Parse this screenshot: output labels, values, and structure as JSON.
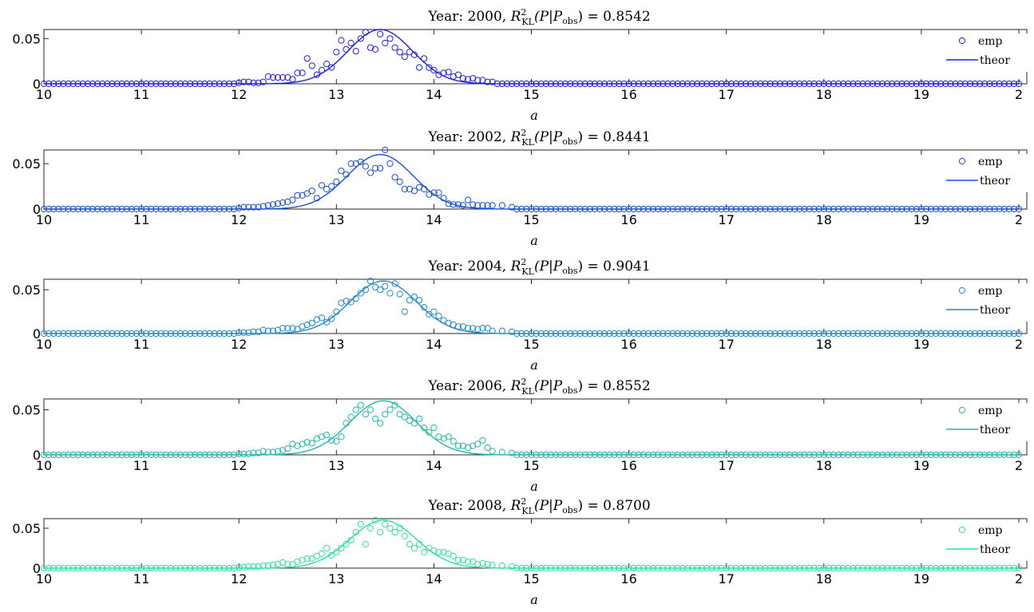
{
  "chart_data": [
    {
      "type": "scatter",
      "title": "Year: 2000, R²KL(P|Pobs) = 0.8542",
      "title_parts": {
        "prefix": "Year: 2000, ",
        "r": "R",
        "sup": "2",
        "sub": "KL",
        "mid": "(P|P",
        "sub2": "obs",
        "suffix": ") = 0.8542"
      },
      "xlabel": "a",
      "ylabel": "",
      "xlim": [
        10,
        20
      ],
      "ylim": [
        0,
        0.06
      ],
      "xticks": [
        "10",
        "11",
        "12",
        "13",
        "14",
        "15",
        "16",
        "17",
        "18",
        "19",
        "2"
      ],
      "yticks": [
        "0",
        "0.05"
      ],
      "legend": [
        "emp",
        "theor"
      ],
      "legend_position": "top-right",
      "color": "#1f1fe0",
      "theor": {
        "mu": 13.45,
        "sigma": 0.33,
        "peak": 0.06
      },
      "series": [
        {
          "name": "emp",
          "x": [
            12.0,
            12.05,
            12.1,
            12.15,
            12.2,
            12.25,
            12.3,
            12.35,
            12.4,
            12.45,
            12.5,
            12.55,
            12.6,
            12.65,
            12.7,
            12.75,
            12.8,
            12.85,
            12.9,
            12.95,
            13.0,
            13.05,
            13.1,
            13.15,
            13.2,
            13.25,
            13.3,
            13.35,
            13.4,
            13.45,
            13.5,
            13.55,
            13.6,
            13.65,
            13.7,
            13.75,
            13.8,
            13.85,
            13.9,
            13.95,
            14.0,
            14.05,
            14.1,
            14.15,
            14.2,
            14.25,
            14.3,
            14.35,
            14.4,
            14.45,
            14.5,
            14.55,
            14.6
          ],
          "y": [
            0.001,
            0.002,
            0.002,
            0.001,
            0.001,
            0.002,
            0.008,
            0.007,
            0.007,
            0.007,
            0.007,
            0.005,
            0.012,
            0.012,
            0.028,
            0.02,
            0.01,
            0.015,
            0.022,
            0.018,
            0.035,
            0.048,
            0.038,
            0.045,
            0.036,
            0.05,
            0.057,
            0.04,
            0.038,
            0.055,
            0.045,
            0.05,
            0.04,
            0.035,
            0.03,
            0.035,
            0.032,
            0.018,
            0.028,
            0.018,
            0.015,
            0.01,
            0.012,
            0.013,
            0.008,
            0.01,
            0.006,
            0.005,
            0.006,
            0.004,
            0.004,
            0.002,
            0.002
          ]
        }
      ]
    },
    {
      "type": "scatter",
      "title": "Year: 2002, R²KL(P|Pobs) = 0.8441",
      "title_parts": {
        "prefix": "Year: 2002, ",
        "r": "R",
        "sup": "2",
        "sub": "KL",
        "mid": "(P|P",
        "sub2": "obs",
        "suffix": ") = 0.8441"
      },
      "xlabel": "a",
      "ylabel": "",
      "xlim": [
        10,
        20
      ],
      "ylim": [
        0,
        0.065
      ],
      "xticks": [
        "10",
        "11",
        "12",
        "13",
        "14",
        "15",
        "16",
        "17",
        "18",
        "19",
        "2"
      ],
      "yticks": [
        "0",
        "0.05"
      ],
      "legend": [
        "emp",
        "theor"
      ],
      "legend_position": "top-right",
      "color": "#1a4fd8",
      "theor": {
        "mu": 13.45,
        "sigma": 0.34,
        "peak": 0.06
      },
      "series": [
        {
          "name": "emp",
          "x": [
            12.0,
            12.05,
            12.1,
            12.15,
            12.2,
            12.25,
            12.3,
            12.35,
            12.4,
            12.45,
            12.5,
            12.55,
            12.6,
            12.65,
            12.7,
            12.75,
            12.8,
            12.85,
            12.9,
            12.95,
            13.0,
            13.05,
            13.1,
            13.15,
            13.2,
            13.25,
            13.3,
            13.35,
            13.4,
            13.45,
            13.5,
            13.55,
            13.6,
            13.65,
            13.7,
            13.75,
            13.8,
            13.85,
            13.9,
            13.95,
            14.0,
            14.05,
            14.1,
            14.15,
            14.2,
            14.25,
            14.3,
            14.35,
            14.4,
            14.45,
            14.5,
            14.55,
            14.6,
            14.7,
            14.8
          ],
          "y": [
            0.001,
            0.002,
            0.002,
            0.002,
            0.002,
            0.003,
            0.004,
            0.005,
            0.006,
            0.007,
            0.008,
            0.01,
            0.015,
            0.015,
            0.017,
            0.02,
            0.012,
            0.026,
            0.022,
            0.025,
            0.03,
            0.042,
            0.038,
            0.05,
            0.05,
            0.052,
            0.047,
            0.04,
            0.045,
            0.045,
            0.065,
            0.05,
            0.035,
            0.03,
            0.022,
            0.022,
            0.02,
            0.024,
            0.022,
            0.016,
            0.018,
            0.018,
            0.012,
            0.006,
            0.005,
            0.005,
            0.004,
            0.01,
            0.005,
            0.004,
            0.004,
            0.004,
            0.004,
            0.004,
            0.002
          ]
        }
      ]
    },
    {
      "type": "scatter",
      "title": "Year: 2004, R²KL(P|Pobs) = 0.9041",
      "title_parts": {
        "prefix": "Year: 2004, ",
        "r": "R",
        "sup": "2",
        "sub": "KL",
        "mid": "(P|P",
        "sub2": "obs",
        "suffix": ") = 0.9041"
      },
      "xlabel": "a",
      "ylabel": "",
      "xlim": [
        10,
        20
      ],
      "ylim": [
        0,
        0.062
      ],
      "xticks": [
        "10",
        "11",
        "12",
        "13",
        "14",
        "15",
        "16",
        "17",
        "18",
        "19",
        "2"
      ],
      "yticks": [
        "0",
        "0.05"
      ],
      "legend": [
        "emp",
        "theor"
      ],
      "legend_position": "top-right",
      "color": "#1f88c8",
      "theor": {
        "mu": 13.48,
        "sigma": 0.34,
        "peak": 0.06
      },
      "series": [
        {
          "name": "emp",
          "x": [
            12.0,
            12.05,
            12.1,
            12.15,
            12.2,
            12.25,
            12.3,
            12.35,
            12.4,
            12.45,
            12.5,
            12.55,
            12.6,
            12.65,
            12.7,
            12.75,
            12.8,
            12.85,
            12.9,
            12.95,
            13.0,
            13.05,
            13.1,
            13.15,
            13.2,
            13.25,
            13.3,
            13.35,
            13.4,
            13.45,
            13.5,
            13.55,
            13.6,
            13.65,
            13.7,
            13.75,
            13.8,
            13.85,
            13.9,
            13.95,
            14.0,
            14.05,
            14.1,
            14.15,
            14.2,
            14.25,
            14.3,
            14.35,
            14.4,
            14.45,
            14.5,
            14.55,
            14.6,
            14.7,
            14.8
          ],
          "y": [
            0.001,
            0.001,
            0.001,
            0.002,
            0.002,
            0.004,
            0.003,
            0.003,
            0.004,
            0.006,
            0.006,
            0.006,
            0.005,
            0.008,
            0.01,
            0.012,
            0.016,
            0.018,
            0.013,
            0.017,
            0.025,
            0.035,
            0.037,
            0.036,
            0.04,
            0.046,
            0.05,
            0.06,
            0.053,
            0.05,
            0.054,
            0.046,
            0.057,
            0.045,
            0.025,
            0.038,
            0.042,
            0.038,
            0.03,
            0.022,
            0.025,
            0.02,
            0.015,
            0.012,
            0.01,
            0.008,
            0.008,
            0.006,
            0.006,
            0.005,
            0.006,
            0.006,
            0.003,
            0.003,
            0.002
          ]
        }
      ]
    },
    {
      "type": "scatter",
      "title": "Year: 2006, R²KL(P|Pobs) = 0.8552",
      "title_parts": {
        "prefix": "Year: 2006, ",
        "r": "R",
        "sup": "2",
        "sub": "KL",
        "mid": "(P|P",
        "sub2": "obs",
        "suffix": ") = 0.8552"
      },
      "xlabel": "a",
      "ylabel": "",
      "xlim": [
        10,
        20
      ],
      "ylim": [
        0,
        0.062
      ],
      "xticks": [
        "10",
        "11",
        "12",
        "13",
        "14",
        "15",
        "16",
        "17",
        "18",
        "19",
        "2"
      ],
      "yticks": [
        "0",
        "0.05"
      ],
      "legend": [
        "emp",
        "theor"
      ],
      "legend_position": "top-right",
      "color": "#1fb8a8",
      "theor": {
        "mu": 13.48,
        "sigma": 0.34,
        "peak": 0.06
      },
      "series": [
        {
          "name": "emp",
          "x": [
            12.0,
            12.05,
            12.1,
            12.15,
            12.2,
            12.25,
            12.3,
            12.35,
            12.4,
            12.45,
            12.5,
            12.55,
            12.6,
            12.65,
            12.7,
            12.75,
            12.8,
            12.85,
            12.9,
            12.95,
            13.0,
            13.05,
            13.1,
            13.15,
            13.2,
            13.25,
            13.3,
            13.35,
            13.4,
            13.45,
            13.5,
            13.55,
            13.6,
            13.65,
            13.7,
            13.75,
            13.8,
            13.85,
            13.9,
            13.95,
            14.0,
            14.05,
            14.1,
            14.15,
            14.2,
            14.25,
            14.3,
            14.35,
            14.4,
            14.45,
            14.5,
            14.55,
            14.6,
            14.7,
            14.8
          ],
          "y": [
            0.001,
            0.001,
            0.001,
            0.002,
            0.002,
            0.004,
            0.003,
            0.003,
            0.004,
            0.005,
            0.007,
            0.012,
            0.01,
            0.012,
            0.014,
            0.013,
            0.018,
            0.02,
            0.022,
            0.016,
            0.015,
            0.02,
            0.035,
            0.042,
            0.05,
            0.055,
            0.045,
            0.05,
            0.04,
            0.035,
            0.045,
            0.05,
            0.055,
            0.045,
            0.042,
            0.038,
            0.035,
            0.04,
            0.03,
            0.025,
            0.03,
            0.02,
            0.018,
            0.02,
            0.015,
            0.01,
            0.01,
            0.008,
            0.01,
            0.012,
            0.016,
            0.008,
            0.004,
            0.003,
            0.002
          ]
        }
      ]
    },
    {
      "type": "scatter",
      "title": "Year: 2008, R²KL(P|Pobs) = 0.8700",
      "title_parts": {
        "prefix": "Year: 2008, ",
        "r": "R",
        "sup": "2",
        "sub": "KL",
        "mid": "(P|P",
        "sub2": "obs",
        "suffix": ") = 0.8700"
      },
      "xlabel": "a",
      "ylabel": "",
      "xlim": [
        10,
        20
      ],
      "ylim": [
        0,
        0.062
      ],
      "xticks": [
        "10",
        "11",
        "12",
        "13",
        "14",
        "15",
        "16",
        "17",
        "18",
        "19",
        "2"
      ],
      "yticks": [
        "0",
        "0.05"
      ],
      "legend": [
        "emp",
        "theor"
      ],
      "legend_position": "top-right",
      "color": "#2ee29a",
      "theor": {
        "mu": 13.48,
        "sigma": 0.34,
        "peak": 0.06
      },
      "series": [
        {
          "name": "emp",
          "x": [
            12.0,
            12.05,
            12.1,
            12.15,
            12.2,
            12.25,
            12.3,
            12.35,
            12.4,
            12.45,
            12.5,
            12.55,
            12.6,
            12.65,
            12.7,
            12.75,
            12.8,
            12.85,
            12.9,
            12.95,
            13.0,
            13.05,
            13.1,
            13.15,
            13.2,
            13.25,
            13.3,
            13.35,
            13.4,
            13.45,
            13.5,
            13.55,
            13.6,
            13.65,
            13.7,
            13.75,
            13.8,
            13.85,
            13.9,
            13.95,
            14.0,
            14.05,
            14.1,
            14.15,
            14.2,
            14.25,
            14.3,
            14.35,
            14.4,
            14.45,
            14.5,
            14.55,
            14.6,
            14.7,
            14.8
          ],
          "y": [
            0.001,
            0.001,
            0.002,
            0.002,
            0.002,
            0.003,
            0.003,
            0.004,
            0.005,
            0.007,
            0.005,
            0.005,
            0.008,
            0.01,
            0.012,
            0.012,
            0.015,
            0.018,
            0.025,
            0.016,
            0.02,
            0.025,
            0.03,
            0.035,
            0.045,
            0.055,
            0.03,
            0.05,
            0.06,
            0.045,
            0.055,
            0.05,
            0.045,
            0.05,
            0.04,
            0.03,
            0.025,
            0.03,
            0.02,
            0.025,
            0.022,
            0.02,
            0.02,
            0.018,
            0.015,
            0.01,
            0.01,
            0.008,
            0.008,
            0.005,
            0.006,
            0.005,
            0.004,
            0.003,
            0.002
          ]
        }
      ]
    }
  ]
}
